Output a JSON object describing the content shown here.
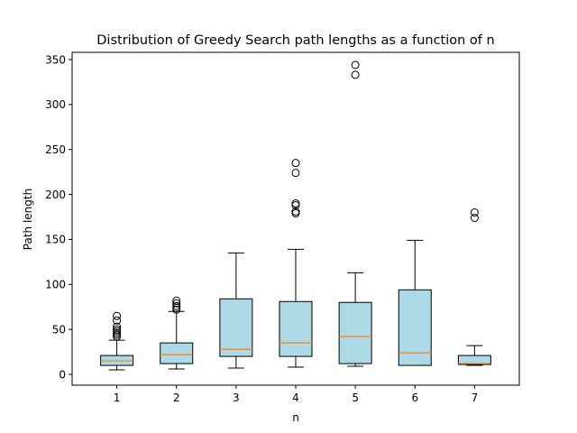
{
  "chart_data": {
    "type": "boxplot",
    "title": "Distribution of Greedy Search path lengths as a function of n",
    "xlabel": "n",
    "ylabel": "Path length",
    "ylim": [
      -12,
      358
    ],
    "yticks": [
      0,
      50,
      100,
      150,
      200,
      250,
      300,
      350
    ],
    "categories": [
      "1",
      "2",
      "3",
      "4",
      "5",
      "6",
      "7"
    ],
    "grid": false,
    "box_fill": "#add8e6",
    "median_color": "#ff7f0e",
    "boxes": [
      {
        "category": "1",
        "whisker_low": 5,
        "q1": 10,
        "median": 15,
        "q3": 21,
        "whisker_high": 38,
        "outliers": [
          42,
          44,
          46,
          48,
          50,
          53,
          60,
          65
        ]
      },
      {
        "category": "2",
        "whisker_low": 6,
        "q1": 12,
        "median": 22,
        "q3": 35,
        "whisker_high": 70,
        "outliers": [
          72,
          74,
          76,
          79,
          82
        ]
      },
      {
        "category": "3",
        "whisker_low": 7,
        "q1": 20,
        "median": 28,
        "q3": 84,
        "whisker_high": 135,
        "outliers": []
      },
      {
        "category": "4",
        "whisker_low": 8,
        "q1": 20,
        "median": 35,
        "q3": 81,
        "whisker_high": 139,
        "outliers": [
          179,
          181,
          188,
          190,
          224,
          235
        ]
      },
      {
        "category": "5",
        "whisker_low": 9,
        "q1": 12,
        "median": 42,
        "q3": 80,
        "whisker_high": 113,
        "outliers": [
          333,
          344
        ]
      },
      {
        "category": "6",
        "whisker_low": 10,
        "q1": 10,
        "median": 24,
        "q3": 94,
        "whisker_high": 149,
        "outliers": []
      },
      {
        "category": "7",
        "whisker_low": 10,
        "q1": 11,
        "median": 12,
        "q3": 21,
        "whisker_high": 32,
        "outliers": [
          174,
          180
        ]
      }
    ]
  }
}
